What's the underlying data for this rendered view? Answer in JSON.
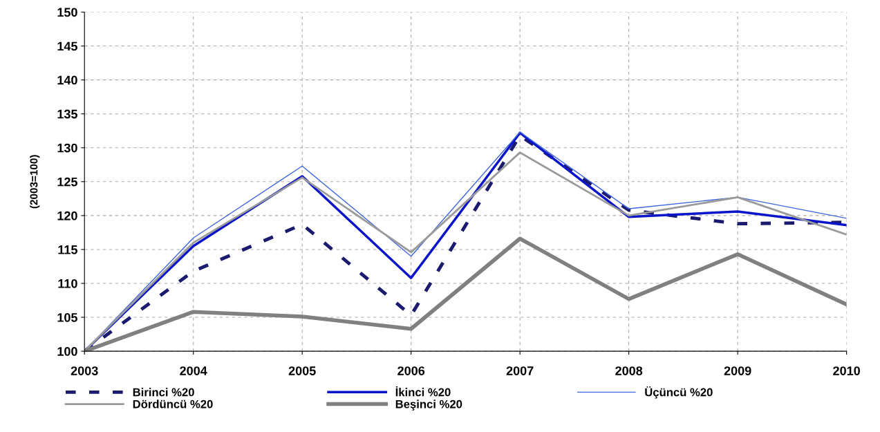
{
  "chart_data": {
    "type": "line",
    "ylabel": "(2003=100)",
    "categories": [
      "2003",
      "2004",
      "2005",
      "2006",
      "2007",
      "2008",
      "2009",
      "2010"
    ],
    "ylim": [
      100,
      150
    ],
    "yticks": [
      100,
      105,
      110,
      115,
      120,
      125,
      130,
      135,
      140,
      145,
      150
    ],
    "grid": true,
    "legend": "bottom",
    "series": [
      {
        "name": "Birinci %20",
        "color": "#1a1a6e",
        "line_style": "dashed",
        "values": [
          100,
          111.8,
          118.7,
          105.3,
          131.8,
          120.8,
          118.8,
          119.0
        ]
      },
      {
        "name": "İkinci %20",
        "color": "#0a14c8",
        "line_style": "solid",
        "values": [
          100,
          115.5,
          125.8,
          110.8,
          132.2,
          119.8,
          120.6,
          118.6
        ]
      },
      {
        "name": "Üçüncü %20",
        "color": "#3c64dc",
        "line_style": "solid",
        "values": [
          100,
          116.7,
          127.3,
          114.0,
          132.3,
          121.0,
          122.7,
          119.6
        ]
      },
      {
        "name": "Dördüncü %20",
        "color": "#9a9a9a",
        "line_style": "solid",
        "values": [
          100,
          116.0,
          125.6,
          114.6,
          129.3,
          120.0,
          122.7,
          117.2
        ]
      },
      {
        "name": "Beşinci %20",
        "color": "#808080",
        "line_style": "solid",
        "values": [
          100,
          105.8,
          105.1,
          103.3,
          116.6,
          107.7,
          114.3,
          106.9
        ]
      }
    ]
  }
}
